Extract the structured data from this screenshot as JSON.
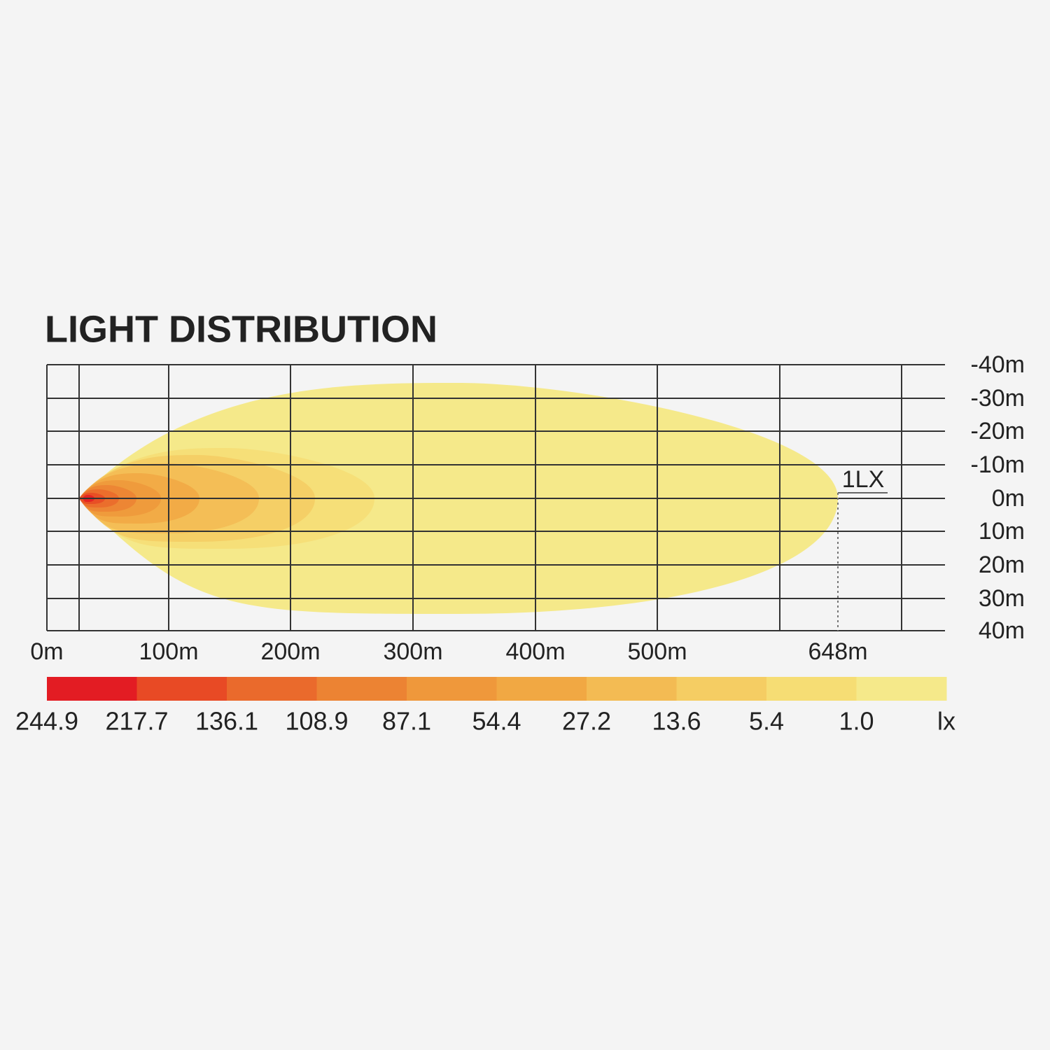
{
  "title": "LIGHT DISTRIBUTION",
  "right_labels": [
    "-40m",
    "-30m",
    "-20m",
    "-10m",
    "0m",
    "10m",
    "20m",
    "30m",
    "40m"
  ],
  "bottom_labels": [
    "0m",
    "100m",
    "200m",
    "300m",
    "400m",
    "500m",
    "648m"
  ],
  "marker_label": "1LX",
  "legend": [
    {
      "label": "244.9",
      "color": "#e31c23"
    },
    {
      "label": "217.7",
      "color": "#e84a25"
    },
    {
      "label": "136.1",
      "color": "#ea6a2c"
    },
    {
      "label": "108.9",
      "color": "#ec8333"
    },
    {
      "label": "87.1",
      "color": "#ef983b"
    },
    {
      "label": "54.4",
      "color": "#f1a843"
    },
    {
      "label": "27.2",
      "color": "#f3bb53"
    },
    {
      "label": "13.6",
      "color": "#f5cd63"
    },
    {
      "label": "5.4",
      "color": "#f6dd74"
    },
    {
      "label": "1.0",
      "color": "#f5e98a"
    }
  ],
  "unit": "lx"
}
